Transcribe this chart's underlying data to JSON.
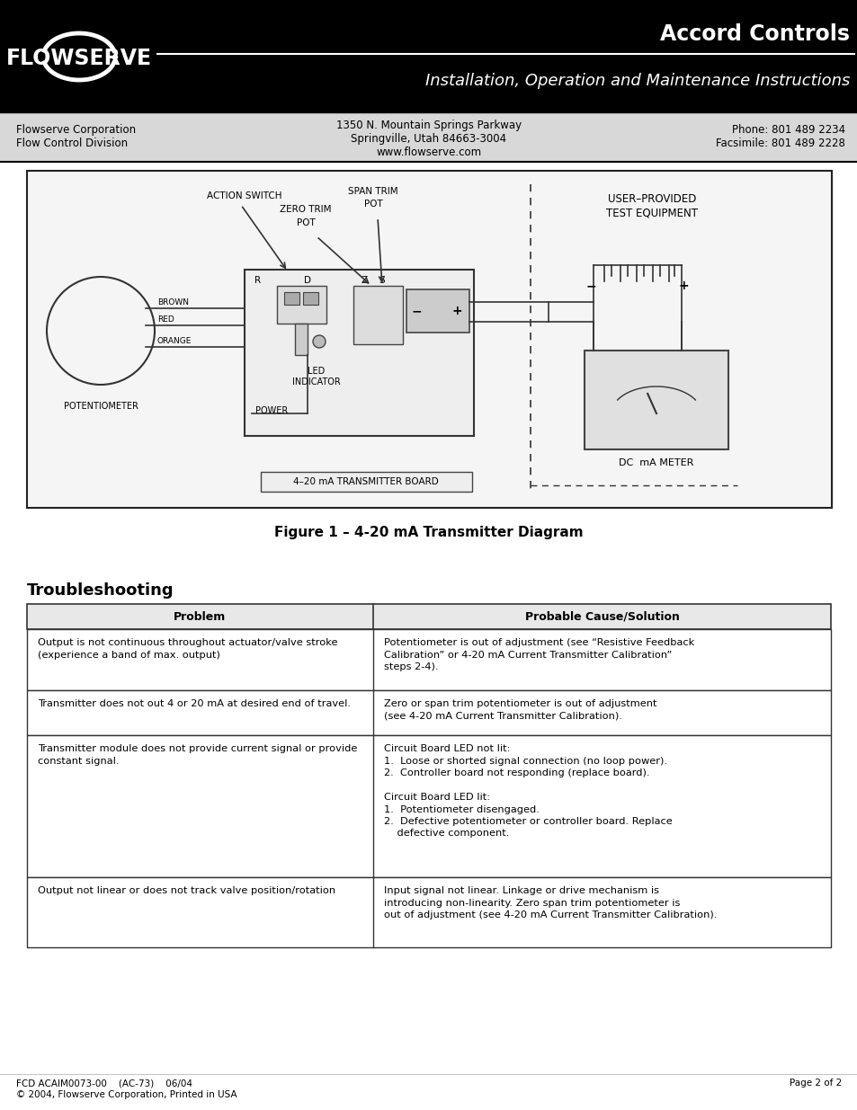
{
  "header_bg": "#000000",
  "header_text_color": "#ffffff",
  "company_name": "FLOWSERVE",
  "title_main": "Accord Controls",
  "title_sub": "Installation, Operation and Maintenance Instructions",
  "info_left1": "Flowserve Corporation",
  "info_left2": "Flow Control Division",
  "info_center1": "1350 N. Mountain Springs Parkway",
  "info_center2": "Springville, Utah 84663-3004",
  "info_center3": "www.flowserve.com",
  "info_right1": "Phone: 801 489 2234",
  "info_right2": "Facsimile: 801 489 2228",
  "figure_caption": "Figure 1 – 4-20 mA Transmitter Diagram",
  "troubleshooting_title": "Troubleshooting",
  "table_header_left": "Problem",
  "table_header_right": "Probable Cause/Solution",
  "table_rows": [
    {
      "problem": "Output is not continuous throughout actuator/valve stroke\n(experience a band of max. output)",
      "solution": "Potentiometer is out of adjustment (see “Resistive Feedback\nCalibration” or 4-20 mA Current Transmitter Calibration”\nsteps 2-4)."
    },
    {
      "problem": "Transmitter does not out 4 or 20 mA at desired end of travel.",
      "solution": "Zero or span trim potentiometer is out of adjustment\n(see 4-20 mA Current Transmitter Calibration)."
    },
    {
      "problem": "Transmitter module does not provide current signal or provide\nconstant signal.",
      "solution": "Circuit Board LED not lit:\n1.  Loose or shorted signal connection (no loop power).\n2.  Controller board not responding (replace board).\n\nCircuit Board LED lit:\n1.  Potentiometer disengaged.\n2.  Defective potentiometer or controller board. Replace\n    defective component."
    },
    {
      "problem": "Output not linear or does not track valve position/rotation",
      "solution": "Input signal not linear. Linkage or drive mechanism is\nintroducing non-linearity. Zero span trim potentiometer is\nout of adjustment (see 4-20 mA Current Transmitter Calibration)."
    }
  ],
  "footer_left1": "FCD ACAIM0073-00    (AC-73)    06/04",
  "footer_right": "Page 2 of 2",
  "footer_left2": "© 2004, Flowserve Corporation, Printed in USA"
}
